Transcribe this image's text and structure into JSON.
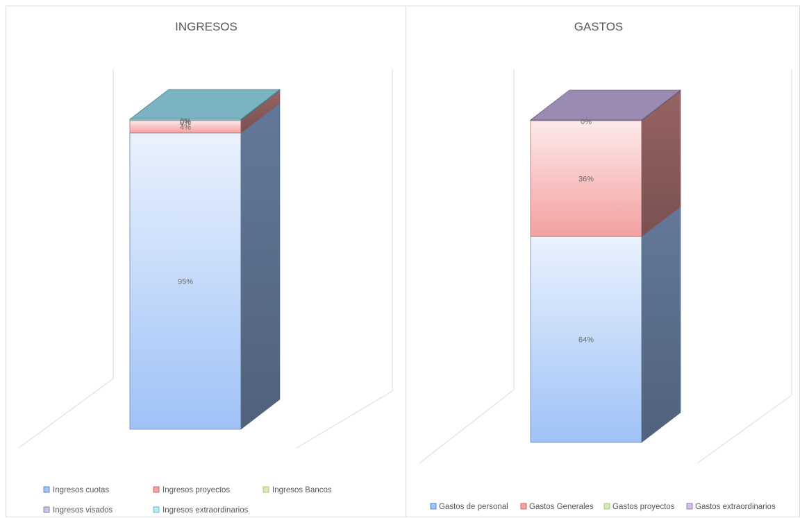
{
  "chart_data": [
    {
      "type": "bar",
      "subtype": "stacked-100-3d",
      "title": "INGRESOS",
      "categories": [
        ""
      ],
      "series": [
        {
          "name": "Ingresos cuotas",
          "values": [
            95
          ],
          "label": "95%",
          "color": "#9fc2f7"
        },
        {
          "name": "Ingresos proyectos",
          "values": [
            4
          ],
          "label": "4%",
          "color": "#f4a0a0"
        },
        {
          "name": "Ingresos Bancos",
          "values": [
            0
          ],
          "label": "0%",
          "color": "#b9dc8f"
        },
        {
          "name": "Ingresos visados",
          "values": [
            0
          ],
          "label": "0%",
          "color": "#b5a3d2"
        },
        {
          "name": "Ingresos extraordinarios",
          "values": [
            0.4
          ],
          "label": "0%",
          "color": "#8fd3e4"
        }
      ],
      "ylim": [
        0,
        100
      ],
      "legend": "bottom",
      "grid": false
    },
    {
      "type": "bar",
      "subtype": "stacked-100-3d",
      "title": "GASTOS",
      "categories": [
        ""
      ],
      "series": [
        {
          "name": "Gastos de personal",
          "values": [
            64
          ],
          "label": "64%",
          "color": "#9fc2f7"
        },
        {
          "name": "Gastos Generales",
          "values": [
            36
          ],
          "label": "36%",
          "color": "#f4a0a0"
        },
        {
          "name": "Gastos proyectos",
          "values": [
            0
          ],
          "label": "",
          "color": "#b9dc8f"
        },
        {
          "name": "Gastos extraordinarios",
          "values": [
            0.2
          ],
          "label": "0%",
          "color": "#b5a3d2"
        }
      ],
      "ylim": [
        0,
        100
      ],
      "legend": "bottom",
      "grid": false
    }
  ]
}
